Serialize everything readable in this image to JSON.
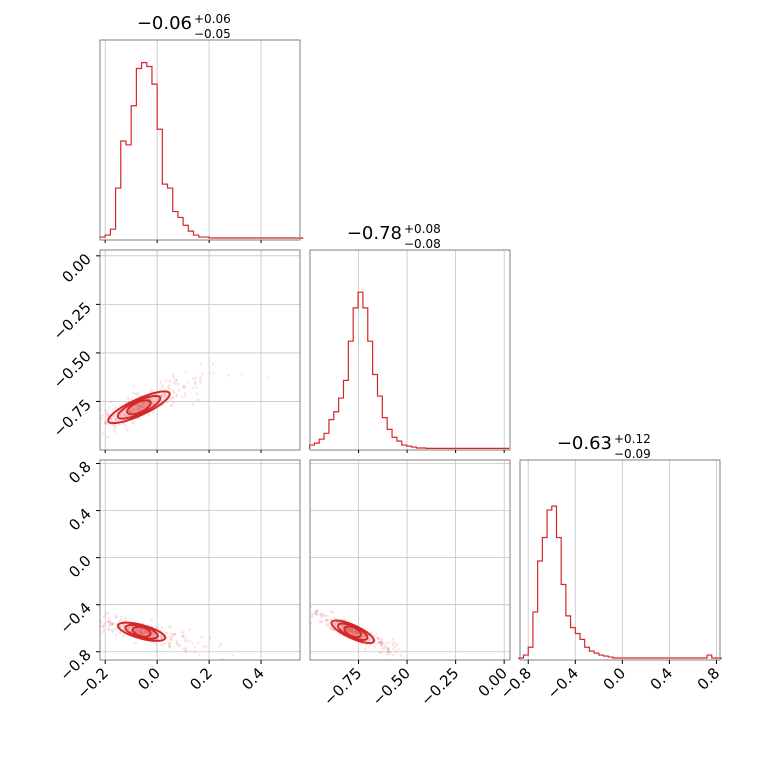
{
  "chart_data": {
    "type": "corner",
    "color": "#d62728",
    "parameters": [
      {
        "title": {
          "median": "−0.06",
          "plus": "+0.06",
          "minus": "−0.05"
        },
        "range": [
          -0.22,
          0.55
        ],
        "ticks": [
          -0.2,
          0.0,
          0.2,
          0.4
        ],
        "tick_labels": [
          "−0.2",
          "0.0",
          "0.2",
          "0.4"
        ],
        "hist_x": [
          -0.21,
          -0.19,
          -0.17,
          -0.15,
          -0.13,
          -0.11,
          -0.09,
          -0.07,
          -0.05,
          -0.03,
          -0.01,
          0.01,
          0.03,
          0.05,
          0.07,
          0.09,
          0.11,
          0.13,
          0.15,
          0.17,
          0.19,
          0.21,
          0.23,
          0.25,
          0.27,
          0.29,
          0.31,
          0.33,
          0.35,
          0.37,
          0.39,
          0.41,
          0.43,
          0.45,
          0.47,
          0.49,
          0.51,
          0.53,
          0.55
        ],
        "hist_y": [
          0.01,
          0.02,
          0.05,
          0.26,
          0.5,
          0.48,
          0.68,
          0.87,
          0.9,
          0.88,
          0.79,
          0.56,
          0.28,
          0.26,
          0.14,
          0.11,
          0.07,
          0.04,
          0.02,
          0.01,
          0.01,
          0.005,
          0.005,
          0.005,
          0.005,
          0.005,
          0.005,
          0.005,
          0.005,
          0.005,
          0.005,
          0.005,
          0.005,
          0.005,
          0.005,
          0.005,
          0.005,
          0.005,
          0.005
        ]
      },
      {
        "title": {
          "median": "−0.78",
          "plus": "+0.08",
          "minus": "−0.08"
        },
        "range": [
          -1.0,
          0.03
        ],
        "ticks": [
          -0.75,
          -0.5,
          -0.25,
          0.0
        ],
        "tick_labels": [
          "−0.75",
          "−0.50",
          "−0.25",
          "0.00"
        ],
        "ytick_labels": [
          "−0.75",
          "−0.50",
          "−0.25",
          "0.00"
        ],
        "hist_x": [
          -0.99,
          -0.965,
          -0.94,
          -0.915,
          -0.89,
          -0.865,
          -0.84,
          -0.815,
          -0.79,
          -0.765,
          -0.74,
          -0.715,
          -0.69,
          -0.665,
          -0.64,
          -0.615,
          -0.59,
          -0.565,
          -0.54,
          -0.515,
          -0.49,
          -0.465,
          -0.44,
          -0.415,
          -0.39,
          -0.365,
          -0.34,
          -0.315,
          -0.29,
          -0.265,
          -0.24,
          -0.215,
          -0.19,
          -0.165,
          -0.14,
          -0.115,
          -0.09,
          -0.065,
          -0.04,
          -0.015,
          0.01
        ],
        "hist_y": [
          0.02,
          0.03,
          0.05,
          0.08,
          0.15,
          0.19,
          0.26,
          0.35,
          0.55,
          0.72,
          0.8,
          0.72,
          0.55,
          0.38,
          0.27,
          0.16,
          0.1,
          0.06,
          0.04,
          0.02,
          0.015,
          0.01,
          0.005,
          0.005,
          0.003,
          0.003,
          0.003,
          0.003,
          0.003,
          0.003,
          0.003,
          0.003,
          0.003,
          0.003,
          0.003,
          0.003,
          0.003,
          0.003,
          0.003,
          0.003,
          0.003
        ]
      },
      {
        "title": {
          "median": "−0.63",
          "plus": "+0.12",
          "minus": "−0.09"
        },
        "range": [
          -0.87,
          0.83
        ],
        "ticks": [
          -0.8,
          -0.4,
          0.0,
          0.4,
          0.8
        ],
        "tick_labels": [
          "−0.8",
          "−0.4",
          "0.0",
          "0.4",
          "0.8"
        ],
        "ytick_labels": [
          "−0.8",
          "−0.4",
          "0.0",
          "0.4",
          "0.8"
        ],
        "hist_x": [
          -0.86,
          -0.82,
          -0.78,
          -0.74,
          -0.7,
          -0.66,
          -0.62,
          -0.58,
          -0.54,
          -0.5,
          -0.46,
          -0.42,
          -0.38,
          -0.34,
          -0.3,
          -0.26,
          -0.22,
          -0.18,
          -0.14,
          -0.1,
          -0.06,
          -0.02,
          0.02,
          0.06,
          0.1,
          0.14,
          0.18,
          0.22,
          0.26,
          0.3,
          0.34,
          0.38,
          0.42,
          0.46,
          0.5,
          0.54,
          0.58,
          0.62,
          0.66,
          0.7,
          0.74,
          0.78,
          0.82
        ],
        "hist_y": [
          0.005,
          0.02,
          0.06,
          0.24,
          0.5,
          0.62,
          0.76,
          0.78,
          0.62,
          0.38,
          0.22,
          0.16,
          0.13,
          0.1,
          0.06,
          0.04,
          0.03,
          0.02,
          0.015,
          0.01,
          0.005,
          0.005,
          0.005,
          0.005,
          0.005,
          0.005,
          0.005,
          0.005,
          0.005,
          0.005,
          0.005,
          0.005,
          0.005,
          0.005,
          0.005,
          0.005,
          0.005,
          0.005,
          0.005,
          0.005,
          0.02,
          0.005,
          0.005
        ]
      }
    ],
    "pairs": [
      {
        "row": 1,
        "col": 0,
        "center": [
          -0.07,
          -0.78
        ],
        "direction": [
          0.13,
          0.08
        ],
        "width": 0.025
      },
      {
        "row": 2,
        "col": 0,
        "center": [
          -0.06,
          -0.63
        ],
        "direction": [
          0.1,
          -0.06
        ],
        "width": 0.03
      },
      {
        "row": 2,
        "col": 1,
        "center": [
          -0.78,
          -0.63
        ],
        "direction": [
          0.12,
          -0.09
        ],
        "width": 0.02
      }
    ]
  }
}
